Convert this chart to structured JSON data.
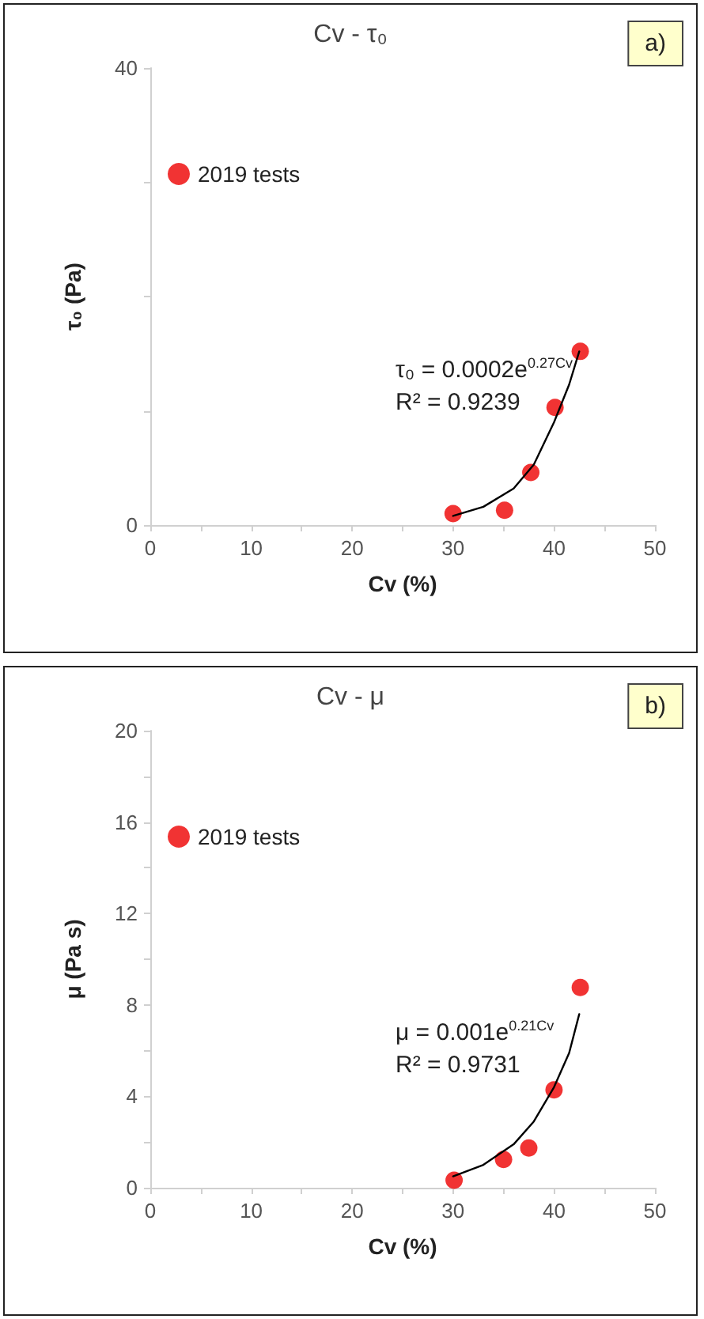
{
  "chart_data": [
    {
      "type": "scatter",
      "title": "Cv - τ₀",
      "xlabel": "Cv (%)",
      "ylabel": "τ₀ (Pa)",
      "xlim": [
        0,
        50
      ],
      "xticks": [
        0,
        {
          "value": 5,
          "label": null
        },
        10,
        {
          "value": 15,
          "label": null
        },
        20,
        {
          "value": 25,
          "label": null
        },
        30,
        {
          "value": 35,
          "label": null
        },
        40,
        {
          "value": 45,
          "label": null
        },
        50
      ],
      "ylim": [
        0,
        40
      ],
      "yticks": [
        0,
        {
          "value": 10,
          "label": null
        },
        {
          "value": 20,
          "label": null
        },
        {
          "value": 30,
          "label": null
        },
        40
      ],
      "grid": false,
      "legend": "top left",
      "marker": "circle",
      "series": [
        {
          "name": "2019 tests",
          "color": "#ee0000",
          "x": [
            30,
            35.1,
            37.7,
            40.1,
            42.6
          ],
          "values": [
            1.0,
            1.3,
            4.6,
            10.3,
            15.2
          ]
        },
        {
          "type": "line",
          "color": "#000000",
          "marker": "none",
          "line_style": "solid",
          "x": [
            30,
            33,
            36,
            38,
            40,
            41.5,
            42.5
          ],
          "values": [
            0.8,
            1.6,
            3.2,
            5.3,
            9,
            12.3,
            15.2
          ]
        }
      ],
      "annotations": [
        "τ₀ = 0.0002e$^{0.27Cv}$",
        "R² = 0.9239",
        "a)"
      ]
    },
    {
      "type": "scatter",
      "title": "Cv - μ",
      "xlabel": "Cv (%)",
      "ylabel": "μ (Pa s)",
      "xlim": [
        0,
        50
      ],
      "xticks": [
        0,
        {
          "value": 5,
          "label": null
        },
        10,
        {
          "value": 15,
          "label": null
        },
        20,
        {
          "value": 25,
          "label": null
        },
        30,
        {
          "value": 35,
          "label": null
        },
        40,
        {
          "value": 45,
          "label": null
        },
        50
      ],
      "ylim": [
        0,
        20
      ],
      "yticks": [
        0,
        {
          "value": 2,
          "label": null
        },
        4,
        {
          "value": 6,
          "label": null
        },
        8,
        {
          "value": 10,
          "label": null
        },
        12,
        {
          "value": 14,
          "label": null
        },
        16,
        {
          "value": 18,
          "label": null
        },
        20
      ],
      "grid": false,
      "legend": "top left",
      "marker": "circle",
      "series": [
        {
          "name": "2019 tests",
          "color": "#ee0000",
          "x": [
            30.1,
            35,
            37.5,
            40,
            42.6
          ],
          "values": [
            0.33,
            1.24,
            1.74,
            4.28,
            8.76
          ]
        },
        {
          "type": "line",
          "color": "#000000",
          "marker": "none",
          "line_style": "solid",
          "x": [
            30,
            33,
            36,
            38,
            40,
            41.5,
            42.5
          ],
          "values": [
            0.5,
            1.0,
            1.9,
            2.9,
            4.4,
            5.9,
            7.6
          ]
        }
      ],
      "annotations": [
        "μ = 0.001e$^{0.21Cv}$",
        "R² = 0.9731",
        "b)"
      ]
    }
  ]
}
